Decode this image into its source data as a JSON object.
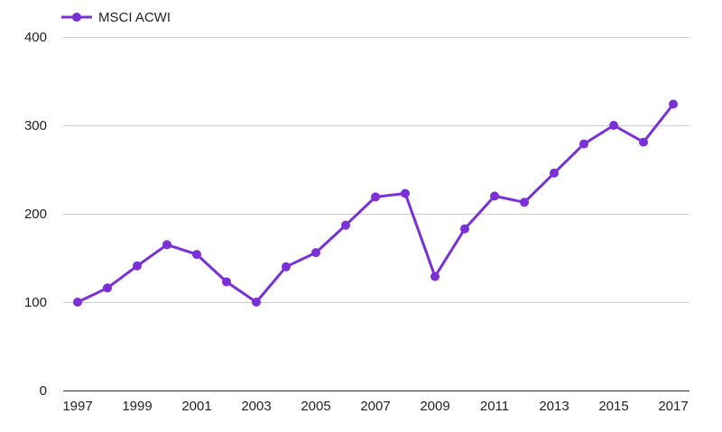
{
  "chart_data": {
    "type": "line",
    "title": "",
    "xlabel": "",
    "ylabel": "",
    "x": [
      1997,
      1998,
      1999,
      2000,
      2001,
      2002,
      2003,
      2004,
      2005,
      2006,
      2007,
      2008,
      2009,
      2010,
      2011,
      2012,
      2013,
      2014,
      2015,
      2016,
      2017
    ],
    "x_ticks": [
      "1997",
      "1999",
      "2001",
      "2003",
      "2005",
      "2007",
      "2009",
      "2011",
      "2013",
      "2015",
      "2017"
    ],
    "y_ticks": [
      "0",
      "100",
      "200",
      "300",
      "400"
    ],
    "ylim": [
      0,
      400
    ],
    "grid": true,
    "legend": "top-left",
    "series": [
      {
        "name": "MSCI ACWI",
        "color": "#7b2fd6",
        "values": [
          100,
          116,
          141,
          165,
          154,
          123,
          100,
          140,
          156,
          187,
          219,
          223,
          129,
          183,
          220,
          213,
          246,
          279,
          300,
          281,
          324
        ]
      }
    ]
  }
}
